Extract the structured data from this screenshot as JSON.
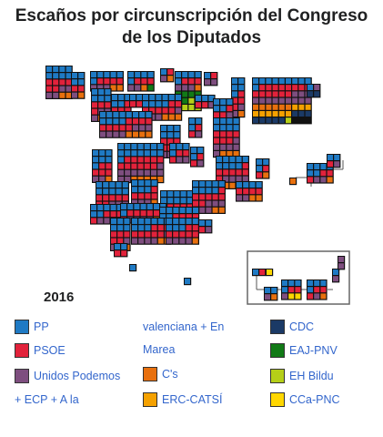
{
  "title_line1": "Escaños por circunscripción del Congreso",
  "title_line2": "de los Diputados",
  "year": "2016",
  "colors": {
    "PP": "#1f7ac4",
    "PSOE": "#e2223b",
    "UP": "#7e4e7f",
    "CS": "#e8700e",
    "ERC": "#f5a100",
    "CDC": "#1b3a66",
    "PNV": "#117a16",
    "BILDU": "#b5cf18",
    "CCA": "#ffd700"
  },
  "legend": [
    {
      "key": "PP",
      "label": "PP"
    },
    {
      "key": "PSOE",
      "label": "PSOE"
    },
    {
      "key": "UP",
      "label": "Unidos Podemos"
    },
    {
      "key": "CS",
      "label": "C's"
    },
    {
      "key": "ERC",
      "label": "ERC-CATSÍ"
    },
    {
      "key": "CDC",
      "label": "CDC"
    },
    {
      "key": "PNV",
      "label": "EAJ-PNV"
    },
    {
      "key": "BILDU",
      "label": "EH Bildu"
    },
    {
      "key": "CCA",
      "label": "CCa-PNC"
    }
  ],
  "legend_continuation": {
    "line1": "+ ECP + A la",
    "line2": "valenciana + En",
    "line3": "Marea"
  }
}
